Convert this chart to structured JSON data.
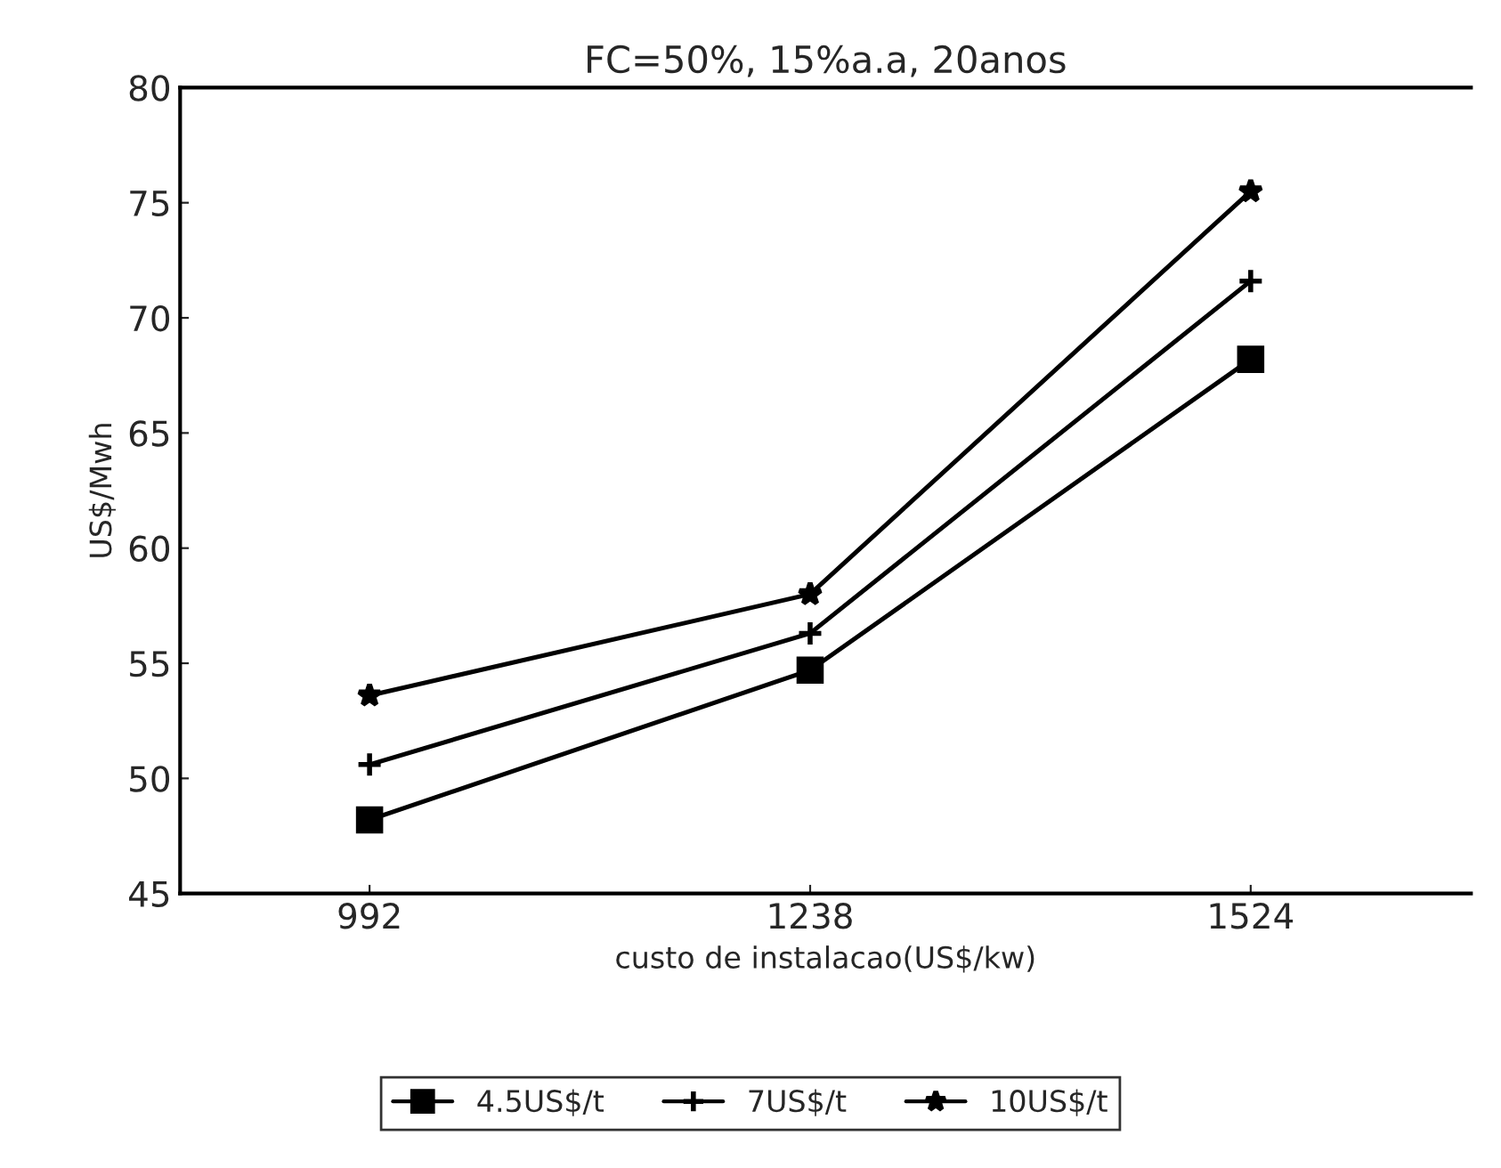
{
  "chart_data": {
    "type": "line",
    "title": "FC=50%, 15%a.a, 20anos",
    "xlabel": "custo de instalacao(US$/kw)",
    "ylabel": "US$/Mwh",
    "categories": [
      "992",
      "1238",
      "1524"
    ],
    "series": [
      {
        "name": "4.5US$/t",
        "color": "#000000",
        "marker": "square",
        "values": [
          48.2,
          54.7,
          68.2
        ]
      },
      {
        "name": "7US$/t",
        "color": "#000000",
        "marker": "cross",
        "values": [
          50.6,
          56.3,
          71.6
        ]
      },
      {
        "name": "10US$/t",
        "color": "#000000",
        "marker": "star",
        "values": [
          53.6,
          58.0,
          75.5
        ]
      }
    ],
    "ylim": [
      45,
      80
    ],
    "yticks": [
      45,
      50,
      55,
      60,
      65,
      70,
      75,
      80
    ],
    "grid": false,
    "legend": "bottom",
    "line_style": "solid"
  }
}
